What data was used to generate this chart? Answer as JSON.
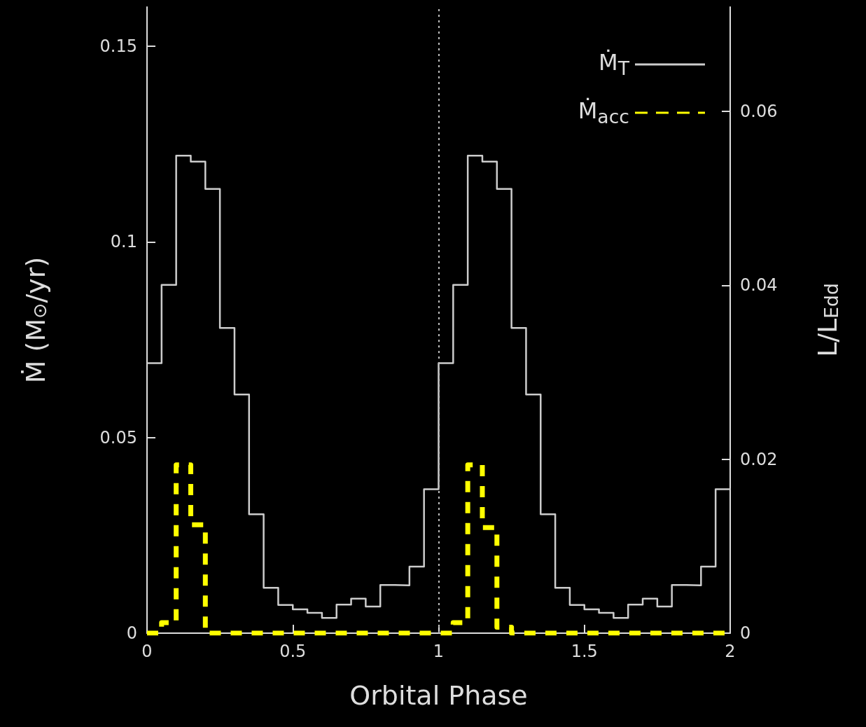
{
  "chart_data": {
    "type": "histogram",
    "xlabel": "Orbital Phase",
    "ylabel": "Ṁ (M$_{⊙}$/yr)",
    "y2label": "L/L$_{Edd}$",
    "bins": [
      0,
      0.05,
      0.1,
      0.15,
      0.2,
      0.25,
      0.3,
      0.35,
      0.4,
      0.45,
      0.5,
      0.55,
      0.6,
      0.65,
      0.7,
      0.75,
      0.8,
      0.85,
      0.9,
      0.95,
      1,
      1.05,
      1.1,
      1.15,
      1.2,
      1.25,
      1.3,
      1.35,
      1.4,
      1.45,
      1.5,
      1.55,
      1.6,
      1.65,
      1.7,
      1.75,
      1.8,
      1.85,
      1.9,
      1.95,
      2
    ],
    "series": [
      {
        "name": "Ṁ$_{T}$",
        "color": "#cccccc",
        "line_style": "solid",
        "values": [
          0.069,
          0.089,
          0.122,
          0.1205,
          0.1135,
          0.078,
          0.061,
          0.0304,
          0.0116,
          0.0072,
          0.0061,
          0.0052,
          0.0039,
          0.0073,
          0.0088,
          0.0068,
          0.0123,
          0.0122,
          0.017,
          0.0368,
          0.069,
          0.089,
          0.122,
          0.1205,
          0.1135,
          0.078,
          0.061,
          0.0304,
          0.0116,
          0.0072,
          0.0061,
          0.0052,
          0.0039,
          0.0073,
          0.0088,
          0.0068,
          0.0123,
          0.0122,
          0.017,
          0.0368
        ]
      },
      {
        "name": "Ṁ$_{acc}$",
        "color": "#ffff00",
        "line_style": "dashed",
        "values": [
          0,
          0.0027,
          0.043,
          0.0277,
          0,
          0,
          0,
          0,
          0,
          0,
          0,
          0,
          0,
          0,
          0,
          0,
          0,
          0,
          0,
          0,
          0,
          0.0027,
          0.043,
          0.027,
          0.0015,
          0,
          0,
          0,
          0,
          0,
          0,
          0,
          0,
          0,
          0,
          0,
          0,
          0,
          0,
          0
        ]
      }
    ],
    "xlim": [
      0,
      2
    ],
    "xticks": [
      0,
      0.5,
      1,
      1.5,
      2
    ],
    "ylim": [
      0,
      0.16
    ],
    "yticks": [
      0,
      0.05,
      0.1,
      0.15
    ],
    "y2lim": [
      0,
      0.072
    ],
    "y2ticks": [
      0,
      0.02,
      0.04,
      0.06
    ],
    "ref_lines": [
      {
        "axis": "x",
        "value": 1,
        "color": "#bbbbbb",
        "line_style": "dotted"
      }
    ],
    "legend": "top right",
    "grid": false
  }
}
